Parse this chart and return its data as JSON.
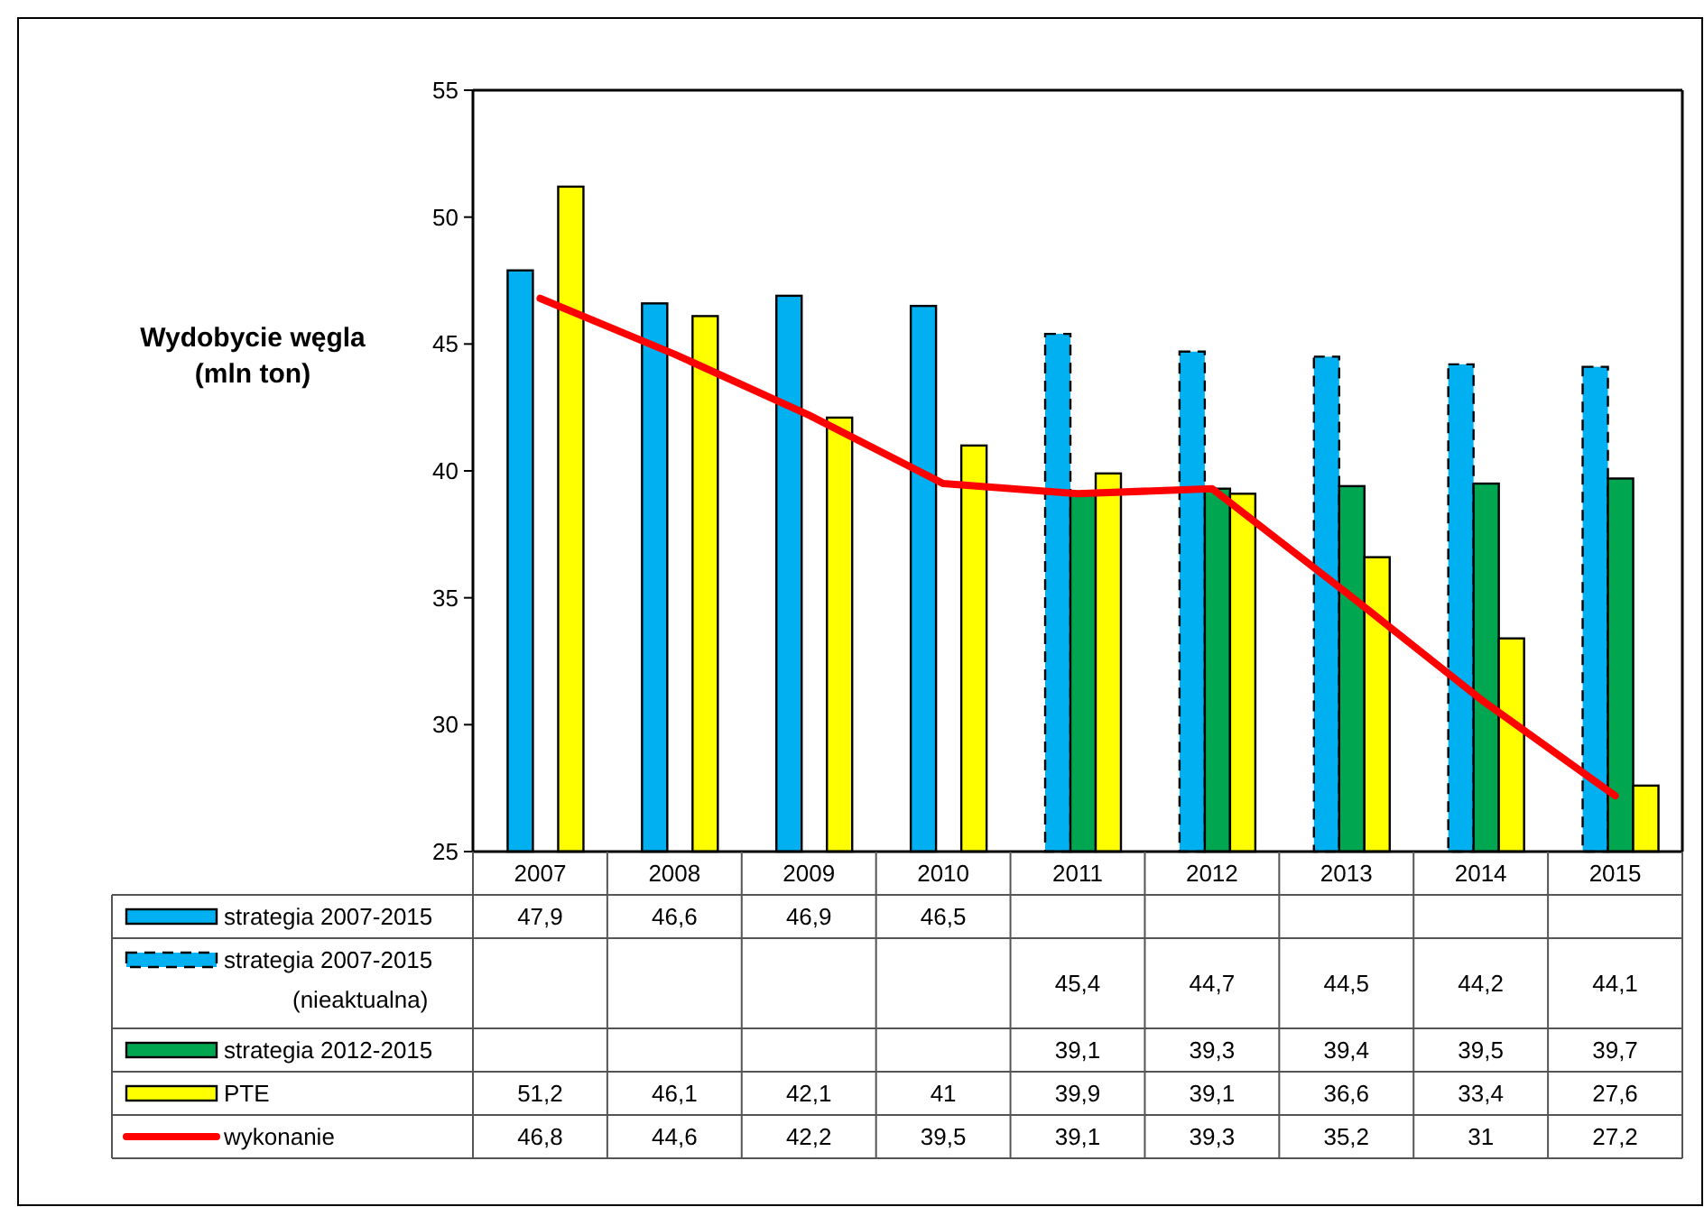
{
  "chart_data": {
    "type": "bar",
    "ylabel": "Wydobycie węgla (mln ton)",
    "categories": [
      "2007",
      "2008",
      "2009",
      "2010",
      "2011",
      "2012",
      "2013",
      "2014",
      "2015"
    ],
    "ylim": [
      25,
      55
    ],
    "yticks": [
      25,
      30,
      35,
      40,
      45,
      50,
      55
    ],
    "grid": false,
    "legend": "bottom",
    "series": [
      {
        "name": "strategia 2007-2015",
        "color": "#00b0f0",
        "values": [
          47.9,
          46.6,
          46.9,
          46.5,
          null,
          null,
          null,
          null,
          null
        ],
        "value_labels": [
          "47,9",
          "46,6",
          "46,9",
          "46,5",
          null,
          null,
          null,
          null,
          null
        ]
      },
      {
        "name": "strategia 2007-2015 (nieaktualna)",
        "color": "#00b0f0",
        "line_style": "dashed",
        "values": [
          null,
          null,
          null,
          null,
          45.4,
          44.7,
          44.5,
          44.2,
          44.1
        ],
        "value_labels": [
          null,
          null,
          null,
          null,
          "45,4",
          "44,7",
          "44,5",
          "44,2",
          "44,1"
        ]
      },
      {
        "name": "strategia 2012-2015",
        "color": "#00a650",
        "values": [
          null,
          null,
          null,
          null,
          39.1,
          39.3,
          39.4,
          39.5,
          39.7
        ],
        "value_labels": [
          null,
          null,
          null,
          null,
          "39,1",
          "39,3",
          "39,4",
          "39,5",
          "39,7"
        ]
      },
      {
        "name": "PTE",
        "color": "#ffff00",
        "values": [
          51.2,
          46.1,
          42.1,
          41,
          39.9,
          39.1,
          36.6,
          33.4,
          27.6
        ],
        "value_labels": [
          "51,2",
          "46,1",
          "42,1",
          "41",
          "39,9",
          "39,1",
          "36,6",
          "33,4",
          "27,6"
        ]
      },
      {
        "name": "wykonanie",
        "type": "line",
        "color": "#ff0000",
        "values": [
          46.8,
          44.6,
          42.2,
          39.5,
          39.1,
          39.3,
          35.2,
          31,
          27.2
        ],
        "value_labels": [
          "46,8",
          "44,6",
          "42,2",
          "39,5",
          "39,1",
          "39,3",
          "35,2",
          "31",
          "27,2"
        ]
      }
    ]
  }
}
